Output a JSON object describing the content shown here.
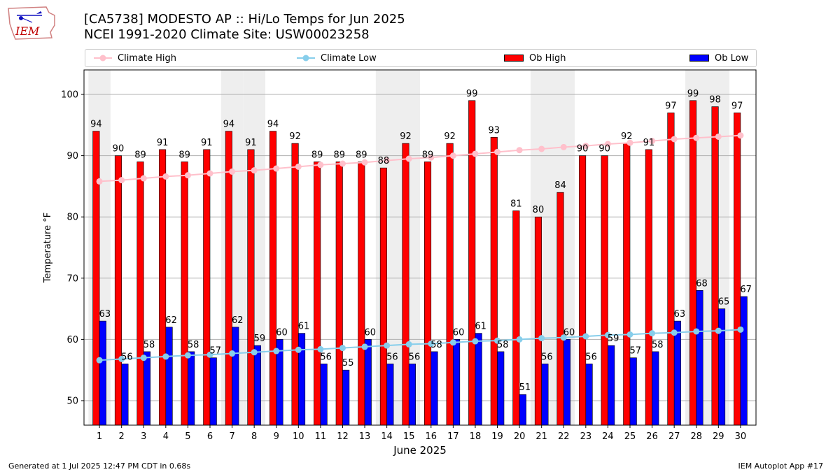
{
  "title": {
    "line1": "[CA5738] MODESTO AP :: Hi/Lo Temps for Jun 2025",
    "line2": "NCEI 1991-2020 Climate Site: USW00023258"
  },
  "logo": {
    "text": "IEM",
    "icon": "iem-iowa-map-logo"
  },
  "legend": [
    {
      "label": "Climate High",
      "type": "line",
      "color": "#ffc0cb"
    },
    {
      "label": "Climate Low",
      "type": "line",
      "color": "#87ceeb"
    },
    {
      "label": "Ob High",
      "type": "bar",
      "color": "#ff0000"
    },
    {
      "label": "Ob Low",
      "type": "bar",
      "color": "#0000ff"
    }
  ],
  "footer": {
    "left": "Generated at 1 Jul 2025 12:47 PM CDT in 0.68s",
    "right": "IEM Autoplot App #17"
  },
  "chart_data": {
    "type": "bar",
    "xlabel": "June 2025",
    "ylabel": "Temperature °F",
    "ylim": [
      46,
      104
    ],
    "yticks": [
      50,
      60,
      70,
      80,
      90,
      100
    ],
    "grid": "horizontal",
    "legend_position": "top",
    "weekend_shading_days": [
      1,
      7,
      8,
      14,
      15,
      21,
      22,
      28,
      29
    ],
    "categories": [
      "1",
      "2",
      "3",
      "4",
      "5",
      "6",
      "7",
      "8",
      "9",
      "10",
      "11",
      "12",
      "13",
      "14",
      "15",
      "16",
      "17",
      "18",
      "19",
      "20",
      "21",
      "22",
      "23",
      "24",
      "25",
      "26",
      "27",
      "28",
      "29",
      "30"
    ],
    "series": [
      {
        "name": "Ob High",
        "type": "bar",
        "color": "#ff0000",
        "values": [
          94,
          90,
          89,
          91,
          89,
          91,
          94,
          91,
          94,
          92,
          89,
          89,
          89,
          88,
          92,
          89,
          92,
          99,
          93,
          81,
          80,
          84,
          90,
          90,
          92,
          91,
          97,
          99,
          98,
          97
        ]
      },
      {
        "name": "Ob Low",
        "type": "bar",
        "color": "#0000ff",
        "values": [
          63,
          56,
          58,
          62,
          58,
          57,
          62,
          59,
          60,
          61,
          56,
          55,
          60,
          56,
          56,
          58,
          60,
          61,
          58,
          51,
          56,
          60,
          56,
          59,
          57,
          58,
          63,
          68,
          65,
          67
        ]
      },
      {
        "name": "Climate High",
        "type": "line",
        "color": "#ffc0cb",
        "values": [
          85.8,
          86.0,
          86.3,
          86.6,
          86.8,
          87.1,
          87.4,
          87.6,
          87.9,
          88.2,
          88.5,
          88.7,
          88.9,
          89.2,
          89.5,
          89.7,
          90.0,
          90.3,
          90.6,
          90.9,
          91.1,
          91.4,
          91.6,
          91.9,
          92.1,
          92.4,
          92.7,
          92.9,
          93.1,
          93.3
        ]
      },
      {
        "name": "Climate Low",
        "type": "line",
        "color": "#87ceeb",
        "values": [
          56.6,
          56.8,
          57.0,
          57.2,
          57.4,
          57.5,
          57.7,
          57.9,
          58.1,
          58.3,
          58.4,
          58.6,
          58.8,
          59.0,
          59.2,
          59.3,
          59.5,
          59.7,
          59.8,
          60.0,
          60.2,
          60.3,
          60.5,
          60.7,
          60.8,
          61.0,
          61.1,
          61.3,
          61.4,
          61.6
        ]
      }
    ]
  }
}
